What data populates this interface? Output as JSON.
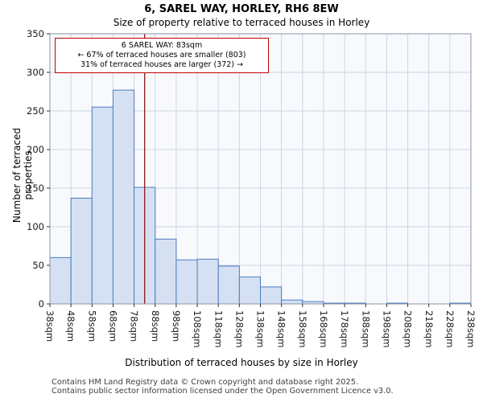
{
  "title": "6, SAREL WAY, HORLEY, RH6 8EW",
  "subtitle": "Size of property relative to terraced houses in Horley",
  "annotation": {
    "line1": "6 SAREL WAY: 83sqm",
    "line2": "← 67% of terraced houses are smaller (803)",
    "line3": "31% of terraced houses are larger (372) →"
  },
  "chart_data": {
    "type": "bar",
    "title": "Size of property relative to terraced houses in Horley",
    "xlabel": "Distribution of terraced houses by size in Horley",
    "ylabel": "Number of terraced properties",
    "bin_start": 38,
    "bin_width": 10,
    "categories": [
      "38sqm",
      "48sqm",
      "58sqm",
      "68sqm",
      "78sqm",
      "88sqm",
      "98sqm",
      "108sqm",
      "118sqm",
      "128sqm",
      "138sqm",
      "148sqm",
      "158sqm",
      "168sqm",
      "178sqm",
      "188sqm",
      "198sqm",
      "208sqm",
      "218sqm",
      "228sqm",
      "238sqm"
    ],
    "values": [
      60,
      137,
      255,
      277,
      151,
      84,
      57,
      58,
      49,
      35,
      22,
      5,
      3,
      1,
      1,
      0,
      1,
      0,
      0,
      1
    ],
    "ylim": [
      0,
      350
    ],
    "yticks": [
      0,
      50,
      100,
      150,
      200,
      250,
      300,
      350
    ],
    "grid": true,
    "legend": "none",
    "marker_value": 83,
    "marker_color": "#8b1a1a",
    "bar_fill": "#d5e1f3",
    "bar_stroke": "#4a7cc0",
    "grid_color": "#ccd5e5",
    "plot_bg": "#f8f9fc",
    "border_color": "#8a93a8"
  },
  "footer": {
    "line1": "Contains HM Land Registry data © Crown copyright and database right 2025.",
    "line2": "Contains public sector information licensed under the Open Government Licence v3.0."
  }
}
